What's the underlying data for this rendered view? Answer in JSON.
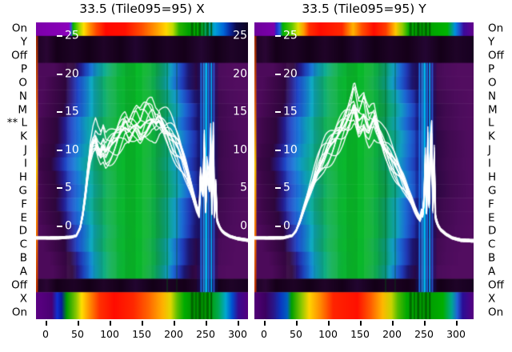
{
  "chart_data": {
    "type": "heatmap",
    "row_labels": [
      "On",
      "Y",
      "Off",
      "P",
      "O",
      "N",
      "M",
      "L",
      "K",
      "J",
      "I",
      "H",
      "G",
      "F",
      "E",
      "D",
      "C",
      "B",
      "A",
      "Off",
      "X",
      "On"
    ],
    "starred_row_index": 7,
    "star_marker": "**",
    "value_ticks": [
      25,
      20,
      15,
      10,
      5,
      0
    ],
    "x_ticks": [
      0,
      50,
      100,
      150,
      200,
      250,
      300
    ],
    "panels": [
      {
        "id": "x",
        "title": "33.5 (Tile095=95) X",
        "right_edge_value_labels": true,
        "band_top": [
          [
            0,
            "#7c00aa"
          ],
          [
            0.155,
            "#8c00bc"
          ],
          [
            0.165,
            "#4040e0"
          ],
          [
            0.175,
            "#00b400"
          ],
          [
            0.205,
            "#a0d800"
          ],
          [
            0.225,
            "#ffe000"
          ],
          [
            0.25,
            "#ff9800"
          ],
          [
            0.285,
            "#ff4800"
          ],
          [
            0.33,
            "#ff0800"
          ],
          [
            0.42,
            "#ff1000"
          ],
          [
            0.5,
            "#ff5000"
          ],
          [
            0.56,
            "#ff9400"
          ],
          [
            0.615,
            "#ffd800"
          ],
          [
            0.645,
            "#c0dc00"
          ],
          [
            0.675,
            "#28b400"
          ],
          [
            0.72,
            "#00a000"
          ],
          [
            0.77,
            "#00aa00"
          ],
          [
            0.8,
            "#00a46a"
          ],
          [
            0.845,
            "#00a0d8"
          ],
          [
            0.885,
            "#0064d8"
          ],
          [
            0.915,
            "#0a28a0"
          ],
          [
            0.945,
            "#0c0848"
          ],
          [
            1,
            "#0e0420"
          ]
        ],
        "band_bottom": [
          [
            0,
            "#5c0084"
          ],
          [
            0.075,
            "#4a0072"
          ],
          [
            0.1,
            "#1030d0"
          ],
          [
            0.12,
            "#0a18a0"
          ],
          [
            0.145,
            "#009c00"
          ],
          [
            0.19,
            "#8cc800"
          ],
          [
            0.215,
            "#ffe000"
          ],
          [
            0.25,
            "#ff9400"
          ],
          [
            0.3,
            "#ff3000"
          ],
          [
            0.37,
            "#ff0c00"
          ],
          [
            0.46,
            "#ff2800"
          ],
          [
            0.53,
            "#ff6400"
          ],
          [
            0.6,
            "#ffb400"
          ],
          [
            0.635,
            "#e0d800"
          ],
          [
            0.665,
            "#60c000"
          ],
          [
            0.7,
            "#00ac00"
          ],
          [
            0.755,
            "#008c00"
          ],
          [
            0.815,
            "#009e00"
          ],
          [
            0.86,
            "#00aa50"
          ],
          [
            0.895,
            "#00a8d0"
          ],
          [
            0.925,
            "#0050d0"
          ],
          [
            0.955,
            "#380a90"
          ],
          [
            1,
            "#54007e"
          ]
        ],
        "curve_points": [
          [
            -16,
            -1.5
          ],
          [
            20,
            -1.5
          ],
          [
            40,
            -1.4
          ],
          [
            48,
            -1.2
          ],
          [
            54,
            -0.2
          ],
          [
            58,
            1.5
          ],
          [
            62,
            4
          ],
          [
            66,
            7
          ],
          [
            70,
            9.5
          ],
          [
            74,
            10.8
          ],
          [
            78,
            11.4
          ],
          [
            82,
            10.4
          ],
          [
            86,
            9.9
          ],
          [
            90,
            10.7
          ],
          [
            94,
            9.8
          ],
          [
            100,
            10.4
          ],
          [
            106,
            11.0
          ],
          [
            112,
            11.6
          ],
          [
            118,
            12.4
          ],
          [
            124,
            13.0
          ],
          [
            130,
            12.5
          ],
          [
            136,
            13.1
          ],
          [
            142,
            13.4
          ],
          [
            148,
            12.9
          ],
          [
            154,
            13.5
          ],
          [
            160,
            13.9
          ],
          [
            166,
            14.1
          ],
          [
            172,
            13.5
          ],
          [
            178,
            13.8
          ],
          [
            184,
            13.1
          ],
          [
            190,
            12.5
          ],
          [
            196,
            11.8
          ],
          [
            202,
            11.0
          ],
          [
            208,
            10.1
          ],
          [
            214,
            8.8
          ],
          [
            220,
            7.2
          ],
          [
            226,
            5.4
          ],
          [
            231,
            3.8
          ],
          [
            236,
            2.4
          ],
          [
            240,
            1.6
          ],
          [
            243,
            9.0
          ],
          [
            245,
            1.8
          ],
          [
            248,
            10.3
          ],
          [
            250,
            2.2
          ],
          [
            253,
            9.8
          ],
          [
            255,
            2.6
          ],
          [
            258,
            10.8
          ],
          [
            260,
            2.0
          ],
          [
            262,
            11.2
          ],
          [
            264,
            1.6
          ],
          [
            266,
            5.0
          ],
          [
            268,
            0.8
          ],
          [
            271,
            0.1
          ],
          [
            275,
            -0.5
          ],
          [
            280,
            -0.9
          ],
          [
            288,
            -1.3
          ],
          [
            300,
            -1.6
          ],
          [
            316,
            -1.8
          ],
          [
            332,
            -1.9
          ]
        ]
      },
      {
        "id": "y",
        "title": "33.5 (Tile095=95) Y",
        "right_edge_value_labels": false,
        "band_top": [
          [
            0,
            "#6e009c"
          ],
          [
            0.09,
            "#7c00ac"
          ],
          [
            0.1,
            "#2828c8"
          ],
          [
            0.115,
            "#1e60e0"
          ],
          [
            0.13,
            "#00b400"
          ],
          [
            0.17,
            "#60c800"
          ],
          [
            0.2,
            "#e0e000"
          ],
          [
            0.225,
            "#ff9c00"
          ],
          [
            0.25,
            "#ff3000"
          ],
          [
            0.3,
            "#ff0c00"
          ],
          [
            0.4,
            "#ff2800"
          ],
          [
            0.45,
            "#ffb400"
          ],
          [
            0.49,
            "#ff5000"
          ],
          [
            0.545,
            "#ff0c00"
          ],
          [
            0.6,
            "#ff3c00"
          ],
          [
            0.645,
            "#ffc800"
          ],
          [
            0.675,
            "#90cc00"
          ],
          [
            0.705,
            "#00ac00"
          ],
          [
            0.76,
            "#009600"
          ],
          [
            0.82,
            "#00a800"
          ],
          [
            0.88,
            "#00b400"
          ],
          [
            0.915,
            "#0090e0"
          ],
          [
            0.935,
            "#2050d0"
          ],
          [
            0.955,
            "#3c0a9a"
          ],
          [
            1,
            "#64008c"
          ]
        ],
        "band_bottom": [
          [
            0,
            "#520078"
          ],
          [
            0.05,
            "#3c0060"
          ],
          [
            0.09,
            "#28188c"
          ],
          [
            0.12,
            "#0a38c0"
          ],
          [
            0.15,
            "#0060c0"
          ],
          [
            0.17,
            "#00a000"
          ],
          [
            0.215,
            "#8cc800"
          ],
          [
            0.25,
            "#ffd400"
          ],
          [
            0.3,
            "#ff8c00"
          ],
          [
            0.36,
            "#ff2400"
          ],
          [
            0.47,
            "#ff1000"
          ],
          [
            0.53,
            "#ff5c00"
          ],
          [
            0.585,
            "#ffb800"
          ],
          [
            0.625,
            "#c8d400"
          ],
          [
            0.655,
            "#50bc00"
          ],
          [
            0.695,
            "#00a800"
          ],
          [
            0.78,
            "#009a00"
          ],
          [
            0.86,
            "#00ae00"
          ],
          [
            0.9,
            "#00a890"
          ],
          [
            0.925,
            "#2064d8"
          ],
          [
            0.95,
            "#2a0e96"
          ],
          [
            1,
            "#580080"
          ]
        ],
        "curve_points": [
          [
            -16,
            -1.5
          ],
          [
            30,
            -1.5
          ],
          [
            44,
            -1.2
          ],
          [
            50,
            -0.6
          ],
          [
            56,
            0.6
          ],
          [
            62,
            2.2
          ],
          [
            68,
            3.8
          ],
          [
            75,
            5.4
          ],
          [
            82,
            7.0
          ],
          [
            89,
            8.4
          ],
          [
            96,
            9.6
          ],
          [
            103,
            10.5
          ],
          [
            110,
            11.3
          ],
          [
            117,
            12.1
          ],
          [
            124,
            13.0
          ],
          [
            130,
            13.9
          ],
          [
            134,
            14.6
          ],
          [
            138,
            15.4
          ],
          [
            141,
            16.2
          ],
          [
            144,
            15.2
          ],
          [
            148,
            13.9
          ],
          [
            152,
            14.2
          ],
          [
            156,
            14.7
          ],
          [
            160,
            13.6
          ],
          [
            164,
            12.9
          ],
          [
            168,
            13.5
          ],
          [
            172,
            14.0
          ],
          [
            176,
            13.0
          ],
          [
            181,
            11.9
          ],
          [
            187,
            10.7
          ],
          [
            193,
            9.8
          ],
          [
            199,
            8.9
          ],
          [
            205,
            8.0
          ],
          [
            211,
            7.0
          ],
          [
            218,
            5.8
          ],
          [
            225,
            4.4
          ],
          [
            231,
            3.2
          ],
          [
            236,
            2.2
          ],
          [
            240,
            1.5
          ],
          [
            244,
            1.0
          ],
          [
            247,
            2.2
          ],
          [
            249,
            0.9
          ],
          [
            252,
            8.2
          ],
          [
            254,
            2.0
          ],
          [
            256,
            10.4
          ],
          [
            258,
            3.0
          ],
          [
            260,
            9.6
          ],
          [
            262,
            11.4
          ],
          [
            264,
            2.4
          ],
          [
            266,
            8.8
          ],
          [
            268,
            1.2
          ],
          [
            271,
            0.3
          ],
          [
            276,
            -0.4
          ],
          [
            284,
            -1.0
          ],
          [
            294,
            -1.5
          ],
          [
            308,
            -1.8
          ],
          [
            332,
            -1.9
          ]
        ]
      }
    ],
    "shared": {
      "row_kinds": [
        "band_top",
        "dark",
        "dark",
        "beam",
        "beam",
        "beam",
        "beam",
        "beam",
        "beam",
        "beam",
        "beam",
        "beam",
        "beam",
        "beam",
        "beam",
        "beam",
        "beam",
        "beam",
        "beam",
        "dark",
        "band_bottom",
        "band_bottom"
      ],
      "beam_gradient": [
        [
          0,
          "#4c0a5a"
        ],
        [
          0.06,
          "#3c0748"
        ],
        [
          0.11,
          "#2e063c"
        ],
        [
          0.145,
          "#251a8a"
        ],
        [
          0.175,
          "#1f47c8"
        ],
        [
          0.21,
          "#1a78d8"
        ],
        [
          0.245,
          "#0fa8c4"
        ],
        [
          0.285,
          "#0fae8e"
        ],
        [
          0.33,
          "#12b058"
        ],
        [
          0.385,
          "#0cb236"
        ],
        [
          0.45,
          "#09bc28"
        ],
        [
          0.52,
          "#0ab42e"
        ],
        [
          0.575,
          "#0fa84e"
        ],
        [
          0.62,
          "#0da387"
        ],
        [
          0.655,
          "#129ec2"
        ],
        [
          0.69,
          "#1b6ad4"
        ],
        [
          0.725,
          "#2038b4"
        ],
        [
          0.755,
          "#1c1670"
        ],
        [
          0.8,
          "#2c0742"
        ],
        [
          0.86,
          "#400a50"
        ],
        [
          0.93,
          "#4c0c5c"
        ],
        [
          1,
          "#520d60"
        ]
      ],
      "dark_gradient": [
        [
          0,
          "#1c0224"
        ],
        [
          0.05,
          "#2a0634"
        ],
        [
          0.1,
          "#150019"
        ],
        [
          0.18,
          "#1e0326"
        ],
        [
          0.25,
          "#130017"
        ],
        [
          0.32,
          "#200428"
        ],
        [
          0.4,
          "#140018"
        ],
        [
          0.47,
          "#220530"
        ],
        [
          0.55,
          "#130017"
        ],
        [
          0.62,
          "#1d0325"
        ],
        [
          0.7,
          "#150019"
        ],
        [
          0.78,
          "#240632"
        ],
        [
          0.85,
          "#140018"
        ],
        [
          0.92,
          "#1f0428"
        ],
        [
          1,
          "#170120"
        ]
      ],
      "beam_spreads": [
        0.84,
        0.9,
        0.95,
        0.99,
        1.02,
        1.05,
        1.07,
        1.08,
        1.07,
        1.06,
        1.03,
        1.0,
        0.96,
        0.91,
        0.87,
        0.82
      ],
      "beam_shifts": [
        3,
        -2,
        2,
        4,
        -1,
        2,
        0,
        -3,
        1,
        3,
        -2,
        0,
        2,
        -2,
        1,
        -1
      ],
      "beam_streaks": [
        [
          253,
          26,
          "#0a1470",
          0.32
        ],
        [
          243,
          2,
          "#1b78f0",
          0.9
        ],
        [
          247,
          2,
          "#28a0ff",
          0.85
        ],
        [
          251,
          3,
          "#00c8ff",
          0.9
        ],
        [
          255,
          2,
          "#1878f0",
          0.85
        ],
        [
          259,
          2,
          "#00b4ff",
          0.9
        ],
        [
          263,
          2,
          "#2a5ce0",
          0.85
        ],
        [
          190,
          2,
          "#006010",
          0.35
        ],
        [
          205,
          2,
          "#004c0c",
          0.3
        ]
      ],
      "band_streaks": [
        [
          229,
          3,
          "#005a00",
          0.8
        ],
        [
          235,
          2,
          "#006600",
          0.8
        ],
        [
          241,
          3,
          "#005000",
          0.8
        ],
        [
          247,
          2,
          "#006600",
          0.8
        ],
        [
          253,
          3,
          "#005a00",
          0.8
        ],
        [
          259,
          2,
          "#004c00",
          0.8
        ]
      ],
      "texture_columns": [
        [
          0.27,
          0.315,
          "#000000",
          0.1
        ],
        [
          0.33,
          0.38,
          "#ffffff",
          0.05
        ],
        [
          0.42,
          0.47,
          "#000000",
          0.07
        ],
        [
          0.5,
          0.545,
          "#ffffff",
          0.06
        ],
        [
          0.565,
          0.61,
          "#000000",
          0.08
        ],
        [
          0.145,
          0.19,
          "#ffffff",
          0.05
        ],
        [
          0.21,
          0.25,
          "#000000",
          0.06
        ]
      ],
      "edge_artifact_colors": [
        "#a02800",
        "#e06010",
        "#ffc800",
        "#ff8000",
        "#c03000"
      ],
      "curve_color": "#ffffff",
      "n_traces": 13,
      "label_color": "#000000",
      "value_label_color": "#ffffff"
    }
  }
}
